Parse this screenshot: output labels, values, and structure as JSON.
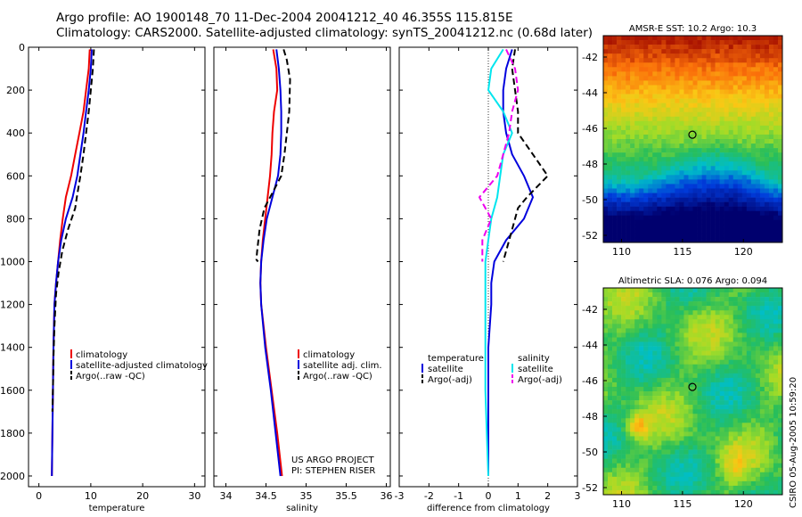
{
  "title_line1": "Argo profile: AO 1900148_70 11-Dec-2004 20041212_40 46.355S 115.815E",
  "title_line2": "Climatology: CARS2000. Satellite-adjusted climatology: synTS_20041212.nc (0.68d later)",
  "credit_line1": "US ARGO PROJECT",
  "credit_line2": "PI: STEPHEN RISER",
  "side_stamp": "CSIRO 05-Aug-2005 10:59:20",
  "colors": {
    "climatology": "#ee0000",
    "satellite": "#0000dd",
    "argo": "#000000",
    "satellite_salt": "#00e5ee",
    "argo_salt": "#ee00ee"
  },
  "chart_data": [
    {
      "type": "line",
      "xlabel": "temperature",
      "ylim": [
        2050,
        0
      ],
      "xlim": [
        -2,
        32
      ],
      "xticks": [
        0,
        10,
        20,
        30
      ],
      "yticks": [
        0,
        200,
        400,
        600,
        800,
        1000,
        1200,
        1400,
        1600,
        1800,
        2000
      ],
      "legend": [
        "climatology",
        "satellite-adjusted climatology",
        "Argo(..raw -QC)"
      ],
      "legend_position": "lower-right",
      "series": [
        {
          "name": "climatology",
          "style": "solid",
          "color": "#ee0000",
          "x": [
            9.8,
            9.6,
            9.1,
            8.6,
            7.8,
            7.0,
            6.2,
            5.2,
            4.6,
            4.1,
            3.7,
            3.3,
            3.0,
            2.8,
            2.7,
            2.6,
            2.5
          ],
          "y": [
            10,
            100,
            200,
            300,
            400,
            500,
            600,
            700,
            800,
            900,
            1000,
            1100,
            1200,
            1400,
            1600,
            1800,
            2000
          ]
        },
        {
          "name": "satellite-adjusted climatology",
          "style": "solid",
          "color": "#0000dd",
          "x": [
            10.2,
            10.0,
            9.6,
            9.1,
            8.6,
            8.0,
            7.4,
            6.5,
            5.2,
            4.3,
            3.7,
            3.3,
            3.0,
            2.8,
            2.7,
            2.6,
            2.5
          ],
          "y": [
            10,
            100,
            200,
            300,
            400,
            500,
            600,
            700,
            800,
            900,
            1000,
            1100,
            1200,
            1400,
            1600,
            1800,
            2000
          ]
        },
        {
          "name": "Argo(..raw -QC)",
          "style": "dashed",
          "color": "#000000",
          "x": [
            10.6,
            10.4,
            10.0,
            9.6,
            9.1,
            8.6,
            8.0,
            7.3,
            7.0,
            5.6,
            4.5,
            3.8,
            3.3,
            3.0,
            2.8,
            2.7,
            2.6
          ],
          "y": [
            10,
            100,
            200,
            300,
            400,
            500,
            600,
            700,
            750,
            850,
            950,
            1050,
            1150,
            1300,
            1450,
            1600,
            1700
          ]
        }
      ]
    },
    {
      "type": "line",
      "xlabel": "salinity",
      "ylim": [
        2050,
        0
      ],
      "xlim": [
        33.85,
        36.05
      ],
      "xticks": [
        34,
        34.5,
        35,
        35.5,
        36
      ],
      "legend": [
        "climatology",
        "satellite adj. clim.",
        "Argo(..raw -QC)"
      ],
      "legend_position": "lower-right",
      "series": [
        {
          "name": "climatology",
          "style": "solid",
          "color": "#ee0000",
          "x": [
            34.59,
            34.63,
            34.64,
            34.6,
            34.58,
            34.57,
            34.55,
            34.52,
            34.49,
            34.46,
            34.44,
            34.43,
            34.44,
            34.5,
            34.57,
            34.64,
            34.7
          ],
          "y": [
            10,
            100,
            200,
            300,
            400,
            500,
            600,
            700,
            800,
            900,
            1000,
            1100,
            1200,
            1400,
            1600,
            1800,
            2000
          ]
        },
        {
          "name": "satellite adj. clim.",
          "style": "solid",
          "color": "#0000dd",
          "x": [
            34.63,
            34.66,
            34.68,
            34.69,
            34.69,
            34.68,
            34.65,
            34.58,
            34.51,
            34.47,
            34.44,
            34.43,
            34.44,
            34.49,
            34.56,
            34.62,
            34.68
          ],
          "y": [
            10,
            100,
            200,
            300,
            400,
            500,
            600,
            700,
            800,
            900,
            1000,
            1100,
            1200,
            1400,
            1600,
            1800,
            2000
          ]
        },
        {
          "name": "Argo(..raw -QC)",
          "style": "dashed",
          "color": "#000000",
          "x": [
            34.72,
            34.76,
            34.8,
            34.79,
            34.76,
            34.73,
            34.69,
            34.58,
            34.48,
            34.42,
            34.39,
            34.38,
            34.4
          ],
          "y": [
            10,
            60,
            150,
            300,
            400,
            500,
            600,
            680,
            750,
            850,
            950,
            990,
            1000
          ]
        }
      ]
    },
    {
      "type": "line",
      "xlabel": "difference from climatology",
      "ylim": [
        2050,
        0
      ],
      "xlim": [
        -3,
        3
      ],
      "xticks": [
        -3,
        -2,
        -1,
        0,
        1,
        2,
        3
      ],
      "legend": [
        "temperature",
        "satellite",
        "Argo(-adj)",
        "salinity",
        "satellite",
        "Argo(-adj)"
      ],
      "legend_position": "lower-center",
      "series": [
        {
          "name": "temperature satellite",
          "style": "solid",
          "color": "#0000dd",
          "x": [
            0.8,
            0.6,
            0.5,
            0.5,
            0.6,
            0.8,
            1.2,
            1.5,
            1.2,
            0.6,
            0.2,
            0.1,
            0.1,
            0.0,
            0.0,
            0.0,
            0.0
          ],
          "y": [
            10,
            100,
            200,
            300,
            400,
            500,
            600,
            700,
            800,
            900,
            1000,
            1100,
            1200,
            1400,
            1600,
            1800,
            2000
          ]
        },
        {
          "name": "temperature Argo(-adj)",
          "style": "dashed",
          "color": "#000000",
          "x": [
            0.9,
            0.8,
            0.9,
            1.0,
            1.0,
            1.5,
            2.0,
            1.3,
            1.0,
            0.8,
            0.5
          ],
          "y": [
            10,
            100,
            200,
            300,
            400,
            500,
            600,
            700,
            750,
            850,
            1000
          ]
        },
        {
          "name": "salinity satellite",
          "style": "solid",
          "color": "#00e5ee",
          "x": [
            0.5,
            0.1,
            0.0,
            0.5,
            0.8,
            0.5,
            0.4,
            0.3,
            0.1,
            0.0,
            -0.1,
            -0.1,
            -0.1,
            -0.1,
            -0.05,
            0.0
          ],
          "y": [
            10,
            100,
            200,
            300,
            400,
            500,
            600,
            700,
            800,
            900,
            1000,
            1200,
            1400,
            1600,
            1800,
            2000
          ]
        },
        {
          "name": "salinity Argo(-adj)",
          "style": "dashed",
          "color": "#ee00ee",
          "x": [
            0.6,
            0.9,
            1.0,
            0.8,
            0.7,
            0.5,
            0.3,
            -0.3,
            0.1,
            -0.2,
            -0.2
          ],
          "y": [
            10,
            100,
            200,
            300,
            400,
            500,
            600,
            700,
            800,
            900,
            1000
          ]
        }
      ]
    },
    {
      "type": "heatmap",
      "title": "AMSR-E SST: 10.2 Argo: 10.3",
      "xlim": [
        108.5,
        123.2
      ],
      "ylim": [
        -52.4,
        -40.8
      ],
      "xticks": [
        110,
        115,
        120
      ],
      "yticks": [
        -42,
        -44,
        -46,
        -48,
        -50,
        -52
      ],
      "marker": {
        "lon": 115.815,
        "lat": -46.355
      }
    },
    {
      "type": "heatmap",
      "title": "Altimetric SLA: 0.076 Argo: 0.094",
      "xlim": [
        108.5,
        123.2
      ],
      "ylim": [
        -52.4,
        -40.8
      ],
      "xticks": [
        110,
        115,
        120
      ],
      "yticks": [
        -42,
        -44,
        -46,
        -48,
        -50,
        -52
      ],
      "marker": {
        "lon": 115.815,
        "lat": -46.355
      }
    }
  ]
}
